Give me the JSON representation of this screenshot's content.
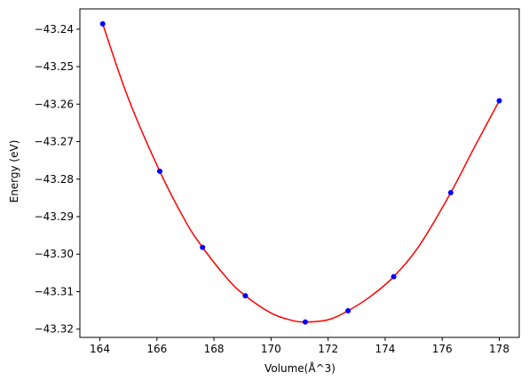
{
  "chart_data": {
    "type": "scatter",
    "title": "",
    "xlabel": "Volume(Å^3)",
    "ylabel": "Energy (eV)",
    "xlim": [
      163.3,
      178.7
    ],
    "ylim": [
      -43.3222,
      -43.2346
    ],
    "xticks": [
      164,
      166,
      168,
      170,
      172,
      174,
      176,
      178
    ],
    "xtick_labels": [
      "164",
      "166",
      "168",
      "170",
      "172",
      "174",
      "176",
      "178"
    ],
    "yticks": [
      -43.24,
      -43.25,
      -43.26,
      -43.27,
      -43.28,
      -43.29,
      -43.3,
      -43.31,
      -43.32
    ],
    "ytick_labels": [
      "−43.24",
      "−43.25",
      "−43.26",
      "−43.27",
      "−43.28",
      "−43.29",
      "−43.30",
      "−43.31",
      "−43.32"
    ],
    "grid": false,
    "legend": false,
    "series": [
      {
        "type": "scatter",
        "color": "#0000ff",
        "points": [
          {
            "x": 164.1,
            "y": -43.2386
          },
          {
            "x": 166.1,
            "y": -43.2779
          },
          {
            "x": 167.6,
            "y": -43.2982
          },
          {
            "x": 169.1,
            "y": -43.3111
          },
          {
            "x": 171.2,
            "y": -43.3181
          },
          {
            "x": 172.7,
            "y": -43.3151
          },
          {
            "x": 174.3,
            "y": -43.306
          },
          {
            "x": 176.3,
            "y": -43.2836
          },
          {
            "x": 178.0,
            "y": -43.2591
          }
        ]
      },
      {
        "type": "line",
        "color": "#ff0000",
        "kind": "fitted-curve",
        "points": [
          {
            "x": 164.1,
            "y": -43.2386
          },
          {
            "x": 165.0,
            "y": -43.2585
          },
          {
            "x": 166.1,
            "y": -43.2779
          },
          {
            "x": 167.0,
            "y": -43.2912
          },
          {
            "x": 167.6,
            "y": -43.2982
          },
          {
            "x": 168.5,
            "y": -43.3068
          },
          {
            "x": 169.1,
            "y": -43.3111
          },
          {
            "x": 170.0,
            "y": -43.3157
          },
          {
            "x": 170.7,
            "y": -43.3176
          },
          {
            "x": 171.2,
            "y": -43.3181
          },
          {
            "x": 172.0,
            "y": -43.3175
          },
          {
            "x": 172.7,
            "y": -43.3151
          },
          {
            "x": 173.5,
            "y": -43.3112
          },
          {
            "x": 174.3,
            "y": -43.306
          },
          {
            "x": 175.2,
            "y": -43.2977
          },
          {
            "x": 176.3,
            "y": -43.2836
          },
          {
            "x": 177.1,
            "y": -43.2719
          },
          {
            "x": 178.0,
            "y": -43.2591
          }
        ]
      }
    ]
  }
}
